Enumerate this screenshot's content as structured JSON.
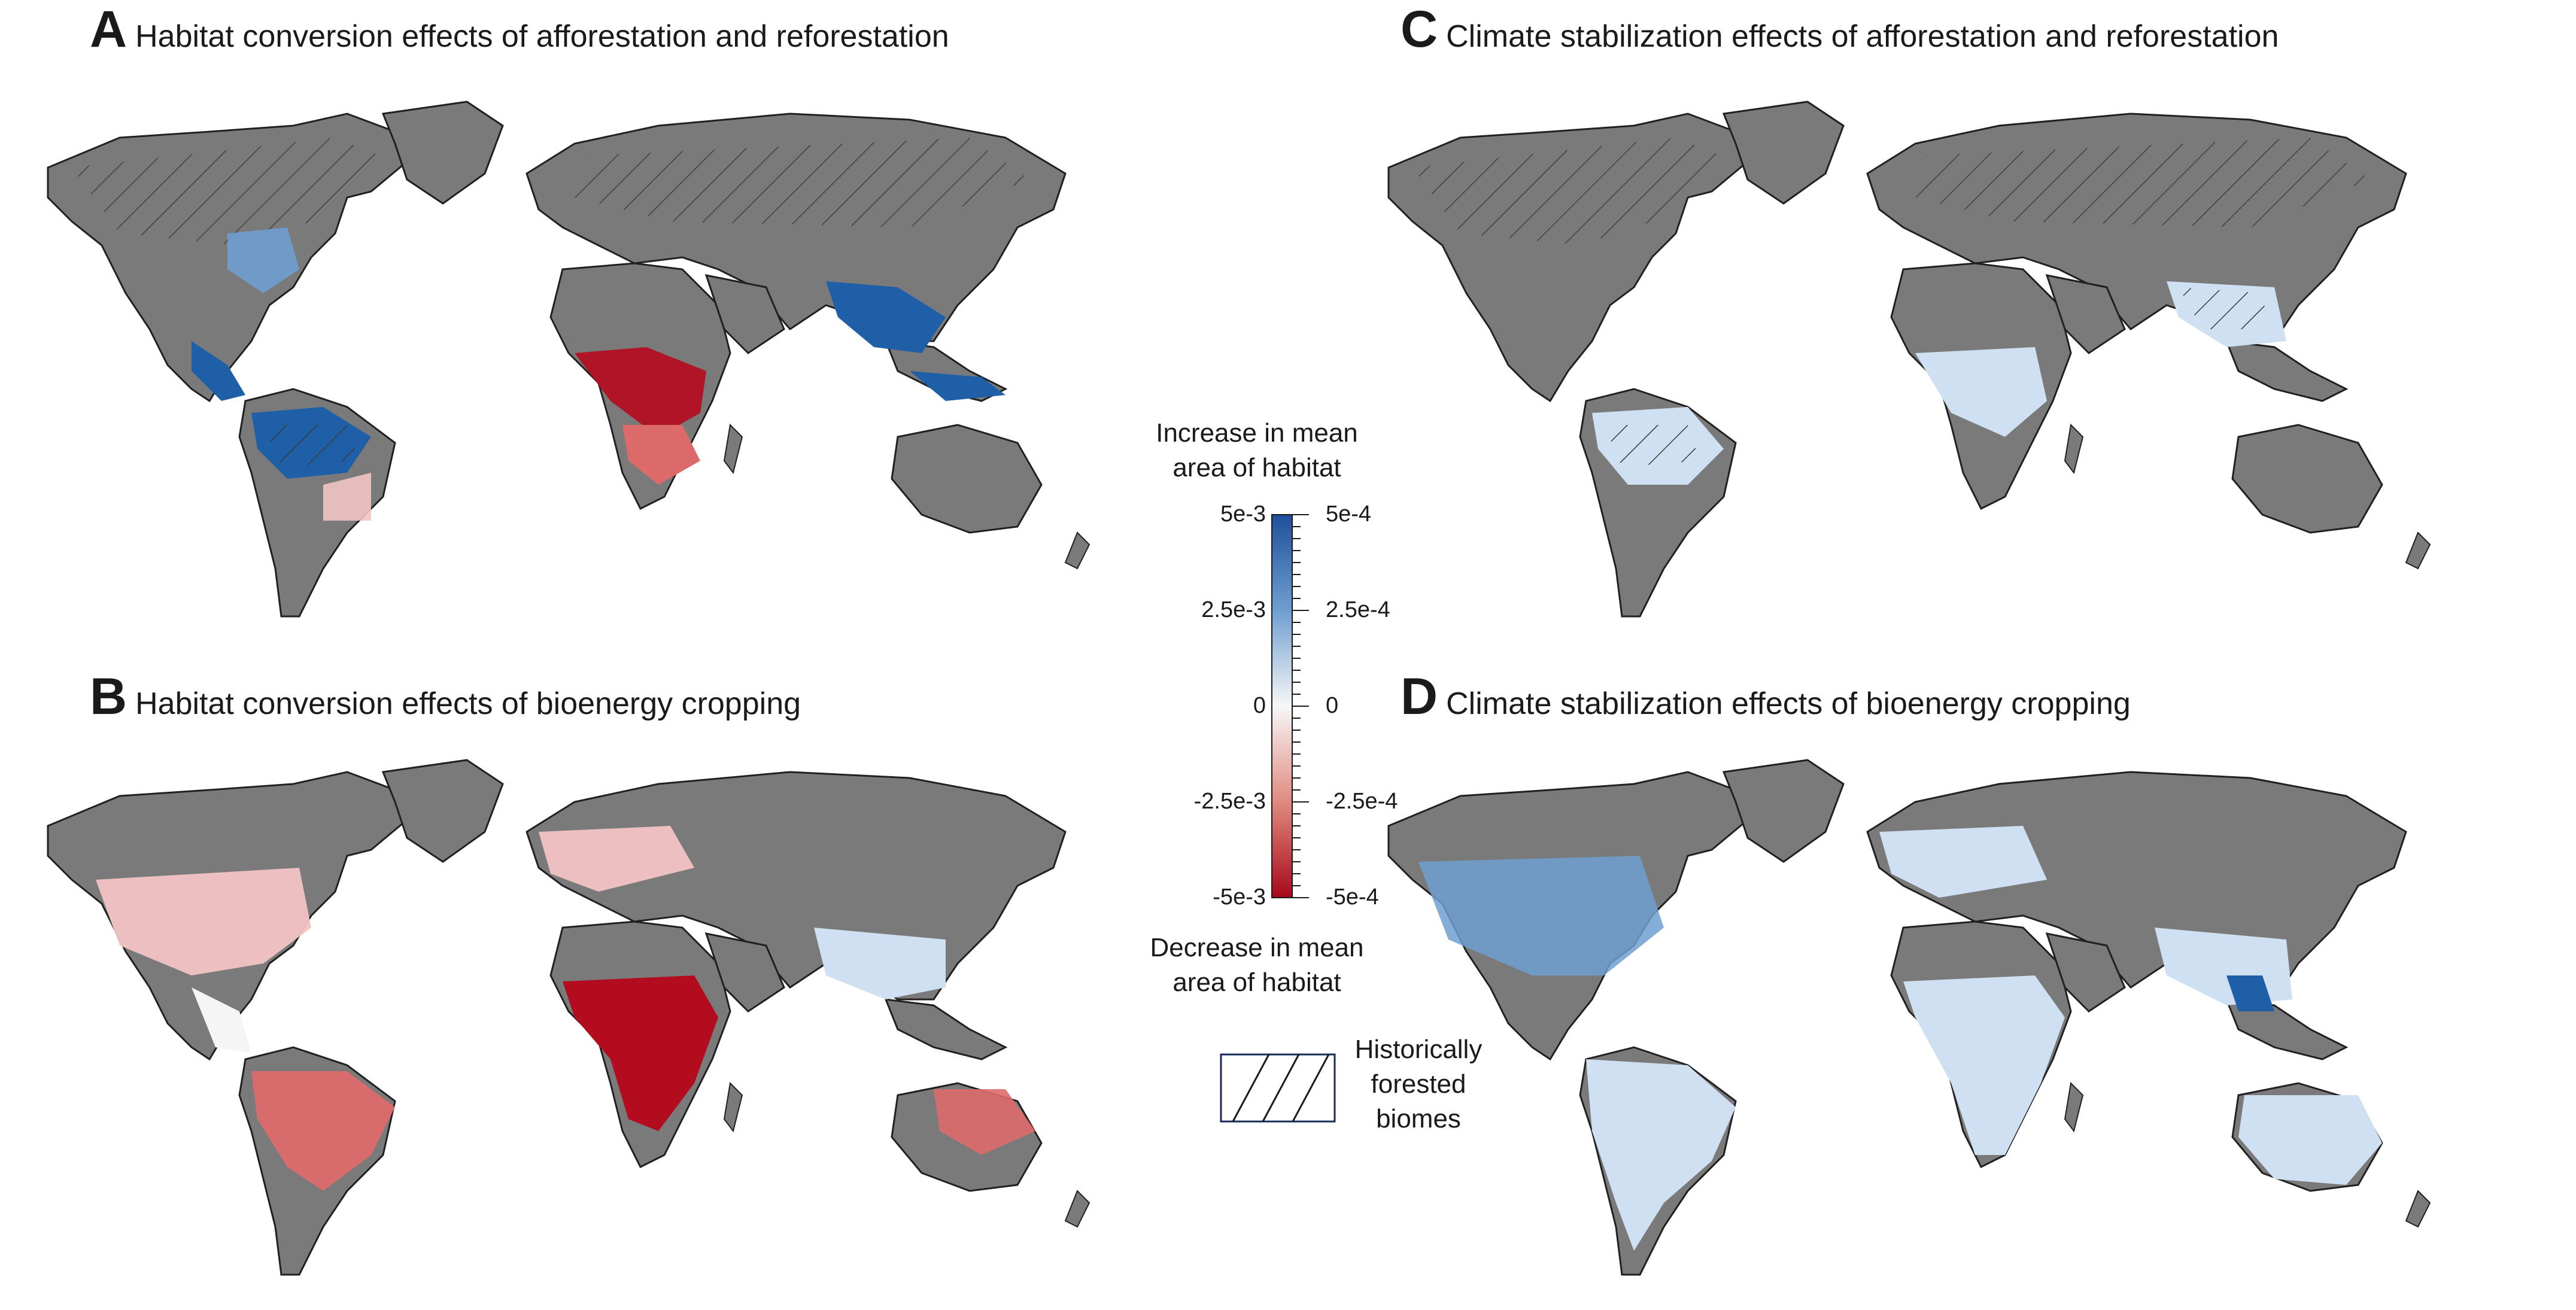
{
  "panels": [
    {
      "letter": "A",
      "title": "Habitat conversion effects of afforestation and reforestation"
    },
    {
      "letter": "B",
      "title": "Habitat conversion effects of bioenergy cropping"
    },
    {
      "letter": "C",
      "title": "Climate stabilization effects of afforestation and reforestation"
    },
    {
      "letter": "D",
      "title": "Climate stabilization effects of bioenergy cropping"
    }
  ],
  "legend": {
    "increase_line1": "Increase in mean",
    "increase_line2": "area of habitat",
    "decrease_line1": "Decrease in mean",
    "decrease_line2": "area of habitat",
    "left_ticks": [
      "5e-3",
      "2.5e-3",
      "0",
      "-2.5e-3",
      "-5e-3"
    ],
    "right_ticks": [
      "5e-4",
      "2.5e-4",
      "0",
      "-2.5e-4",
      "-5e-4"
    ],
    "hatch_line1": "Historically",
    "hatch_line2": "forested",
    "hatch_line3": "biomes"
  },
  "colors": {
    "land": "#7a7a7a",
    "blue_strong": "#1f5fa8",
    "blue_mid": "#6f9fd0",
    "blue_light": "#cfe0f2",
    "neutral": "#f5f5f5",
    "red_light": "#f2c4c4",
    "red_mid": "#dd6a6a",
    "red_strong": "#b30c1e"
  }
}
